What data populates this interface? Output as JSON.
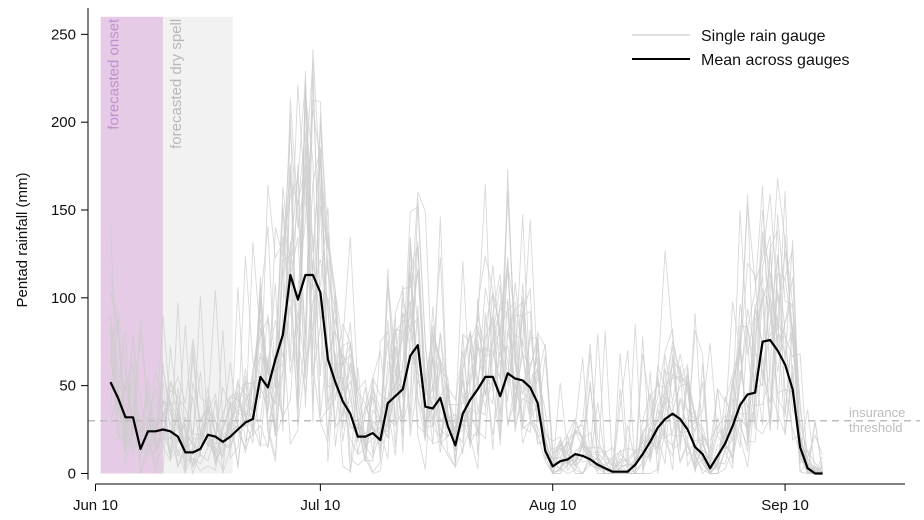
{
  "chart_data": {
    "type": "line",
    "title": "",
    "xlabel": "",
    "ylabel": "Pentad rainfall (mm)",
    "x_ticks": [
      {
        "label": "Jun 10",
        "day": 0
      },
      {
        "label": "Jul 10",
        "day": 30
      },
      {
        "label": "Aug 10",
        "day": 61
      },
      {
        "label": "Sep 10",
        "day": 92
      }
    ],
    "xlim_days": [
      -1,
      108
    ],
    "ylim": [
      -6,
      265
    ],
    "y_ticks": [
      0,
      50,
      100,
      150,
      200,
      250
    ],
    "grid": false,
    "legend": {
      "position": "top-right",
      "entries": [
        {
          "label": "Single rain gauge",
          "color": "#cccccc"
        },
        {
          "label": "Mean across gauges",
          "color": "#000000"
        }
      ]
    },
    "bands": [
      {
        "label": "forecasted onset",
        "start_day": 0.7,
        "end_day": 9,
        "color": "#e6cbe6",
        "text_color": "#bf8fd0"
      },
      {
        "label": "forecasted dry spell",
        "start_day": 9,
        "end_day": 18.3,
        "color": "#f2f2f2",
        "text_color": "#b8b8b8"
      }
    ],
    "threshold": {
      "value": 30,
      "label_line1": "insurance",
      "label_line2": "threshold",
      "color": "#bdbdbd"
    },
    "series": [
      {
        "name": "Mean across gauges",
        "color": "#000000",
        "points": [
          [
            2,
            52
          ],
          [
            3,
            43
          ],
          [
            4,
            32
          ],
          [
            5,
            32
          ],
          [
            6,
            14
          ],
          [
            7,
            24
          ],
          [
            8,
            24
          ],
          [
            9,
            25
          ],
          [
            10,
            24
          ],
          [
            11,
            21
          ],
          [
            12,
            12
          ],
          [
            13,
            12
          ],
          [
            14,
            14
          ],
          [
            15,
            22
          ],
          [
            16,
            21
          ],
          [
            17,
            18
          ],
          [
            18,
            21
          ],
          [
            19,
            25
          ],
          [
            20,
            29
          ],
          [
            21,
            31
          ],
          [
            22,
            55
          ],
          [
            23,
            49
          ],
          [
            24,
            65
          ],
          [
            25,
            79
          ],
          [
            26,
            113
          ],
          [
            27,
            99
          ],
          [
            28,
            113
          ],
          [
            29,
            113
          ],
          [
            30,
            103
          ],
          [
            31,
            65
          ],
          [
            32,
            52
          ],
          [
            33,
            41
          ],
          [
            34,
            34
          ],
          [
            35,
            21
          ],
          [
            36,
            21
          ],
          [
            37,
            23
          ],
          [
            38,
            19
          ],
          [
            39,
            40
          ],
          [
            40,
            44
          ],
          [
            41,
            48
          ],
          [
            42,
            67
          ],
          [
            43,
            73
          ],
          [
            44,
            38
          ],
          [
            45,
            37
          ],
          [
            46,
            43
          ],
          [
            47,
            27
          ],
          [
            48,
            16
          ],
          [
            49,
            34
          ],
          [
            50,
            42
          ],
          [
            51,
            48
          ],
          [
            52,
            55
          ],
          [
            53,
            55
          ],
          [
            54,
            44
          ],
          [
            55,
            57
          ],
          [
            56,
            54
          ],
          [
            57,
            53
          ],
          [
            58,
            49
          ],
          [
            59,
            40
          ],
          [
            60,
            13
          ],
          [
            61,
            4
          ],
          [
            62,
            7
          ],
          [
            63,
            8
          ],
          [
            64,
            11
          ],
          [
            65,
            10
          ],
          [
            66,
            8
          ],
          [
            67,
            5
          ],
          [
            68,
            3
          ],
          [
            69,
            1
          ],
          [
            70,
            1
          ],
          [
            71,
            1
          ],
          [
            72,
            5
          ],
          [
            73,
            11
          ],
          [
            74,
            18
          ],
          [
            75,
            26
          ],
          [
            76,
            31
          ],
          [
            77,
            34
          ],
          [
            78,
            31
          ],
          [
            79,
            25
          ],
          [
            80,
            15
          ],
          [
            81,
            11
          ],
          [
            82,
            3
          ],
          [
            83,
            10
          ],
          [
            84,
            17
          ],
          [
            85,
            27
          ],
          [
            86,
            39
          ],
          [
            87,
            45
          ],
          [
            88,
            46
          ],
          [
            89,
            75
          ],
          [
            90,
            76
          ],
          [
            91,
            70
          ],
          [
            92,
            62
          ],
          [
            93,
            48
          ],
          [
            94,
            15
          ],
          [
            95,
            3
          ],
          [
            96,
            0
          ],
          [
            97,
            0
          ]
        ]
      }
    ],
    "gauge_series_count": 20
  }
}
